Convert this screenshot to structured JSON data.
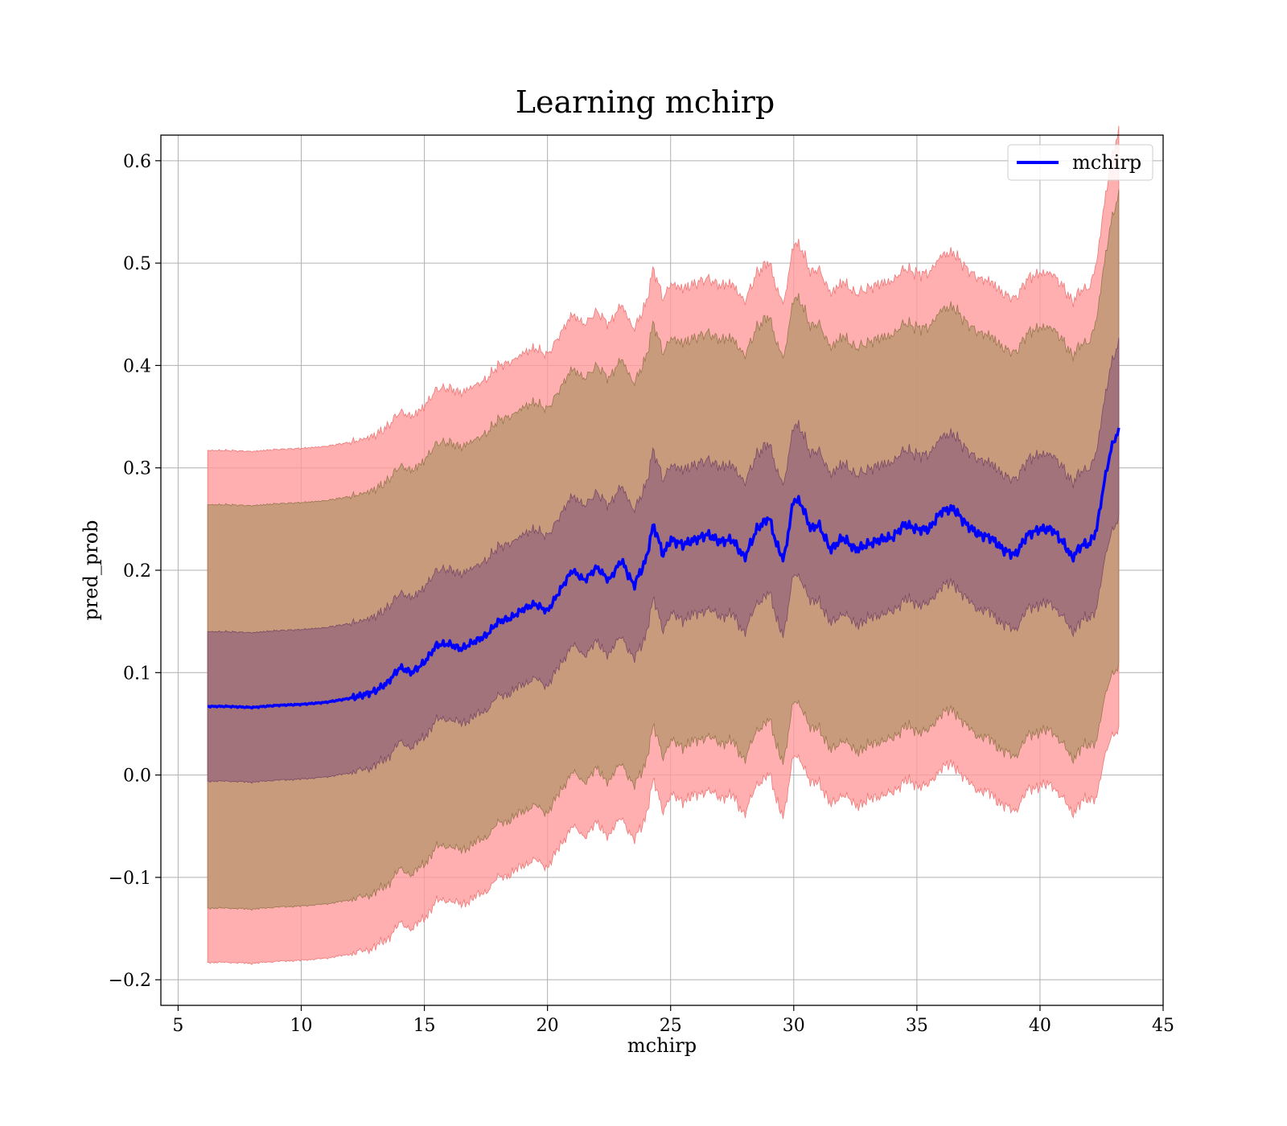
{
  "chart_data": {
    "type": "line",
    "title": "Learning mchirp",
    "xlabel": "mchirp",
    "ylabel": "pred_prob",
    "xlim": [
      4.3,
      45
    ],
    "ylim": [
      -0.225,
      0.625
    ],
    "xticks": [
      5,
      10,
      15,
      20,
      25,
      30,
      35,
      40,
      45
    ],
    "xtick_labels": [
      "5",
      "10",
      "15",
      "20",
      "25",
      "30",
      "35",
      "40",
      "45"
    ],
    "yticks": [
      -0.2,
      -0.1,
      0.0,
      0.1,
      0.2,
      0.3,
      0.4,
      0.5,
      0.6
    ],
    "ytick_labels": [
      "−0.2",
      "−0.1",
      "0.0",
      "0.1",
      "0.2",
      "0.3",
      "0.4",
      "0.5",
      "0.6"
    ],
    "grid": true,
    "legend": {
      "placement": "top-right",
      "entries": [
        "mchirp"
      ]
    },
    "colors": {
      "line": "#0000ff",
      "band_outer": "#ff9999",
      "band_middle": "#c49a78",
      "band_inner": "#a0717a"
    },
    "series": [
      {
        "name": "mchirp",
        "x": [
          6.2,
          7,
          8,
          9,
          10,
          11,
          12,
          12.5,
          13,
          13.5,
          14,
          14.5,
          15,
          15.5,
          16,
          16.5,
          17,
          17.5,
          18,
          18.5,
          19,
          19.5,
          20,
          20.5,
          21,
          21.5,
          22,
          22.5,
          23,
          23.5,
          24,
          24.3,
          24.7,
          25,
          25.5,
          26,
          26.5,
          27,
          27.5,
          28,
          28.5,
          29,
          29.3,
          29.6,
          30,
          30.3,
          30.7,
          31,
          31.5,
          32,
          32.5,
          33,
          33.5,
          34,
          34.5,
          35,
          35.5,
          36,
          36.5,
          37,
          37.5,
          38,
          38.5,
          39,
          39.5,
          40,
          40.5,
          41,
          41.3,
          41.7,
          42,
          42.3,
          42.6,
          42.9,
          43.2
        ],
        "y": [
          0.067,
          0.067,
          0.066,
          0.068,
          0.069,
          0.071,
          0.075,
          0.078,
          0.082,
          0.09,
          0.105,
          0.1,
          0.11,
          0.127,
          0.128,
          0.123,
          0.13,
          0.136,
          0.15,
          0.153,
          0.162,
          0.167,
          0.16,
          0.18,
          0.2,
          0.19,
          0.203,
          0.19,
          0.21,
          0.185,
          0.21,
          0.245,
          0.215,
          0.23,
          0.225,
          0.23,
          0.235,
          0.228,
          0.23,
          0.212,
          0.24,
          0.252,
          0.225,
          0.21,
          0.27,
          0.265,
          0.24,
          0.245,
          0.22,
          0.232,
          0.22,
          0.225,
          0.23,
          0.232,
          0.245,
          0.24,
          0.24,
          0.258,
          0.26,
          0.245,
          0.235,
          0.232,
          0.22,
          0.215,
          0.235,
          0.24,
          0.24,
          0.225,
          0.212,
          0.225,
          0.225,
          0.24,
          0.285,
          0.32,
          0.337
        ]
      }
    ],
    "bands": {
      "inner_halfwidth": 0.073,
      "middle_halfwidth": 0.197,
      "outer_halfwidth": 0.25
    }
  }
}
